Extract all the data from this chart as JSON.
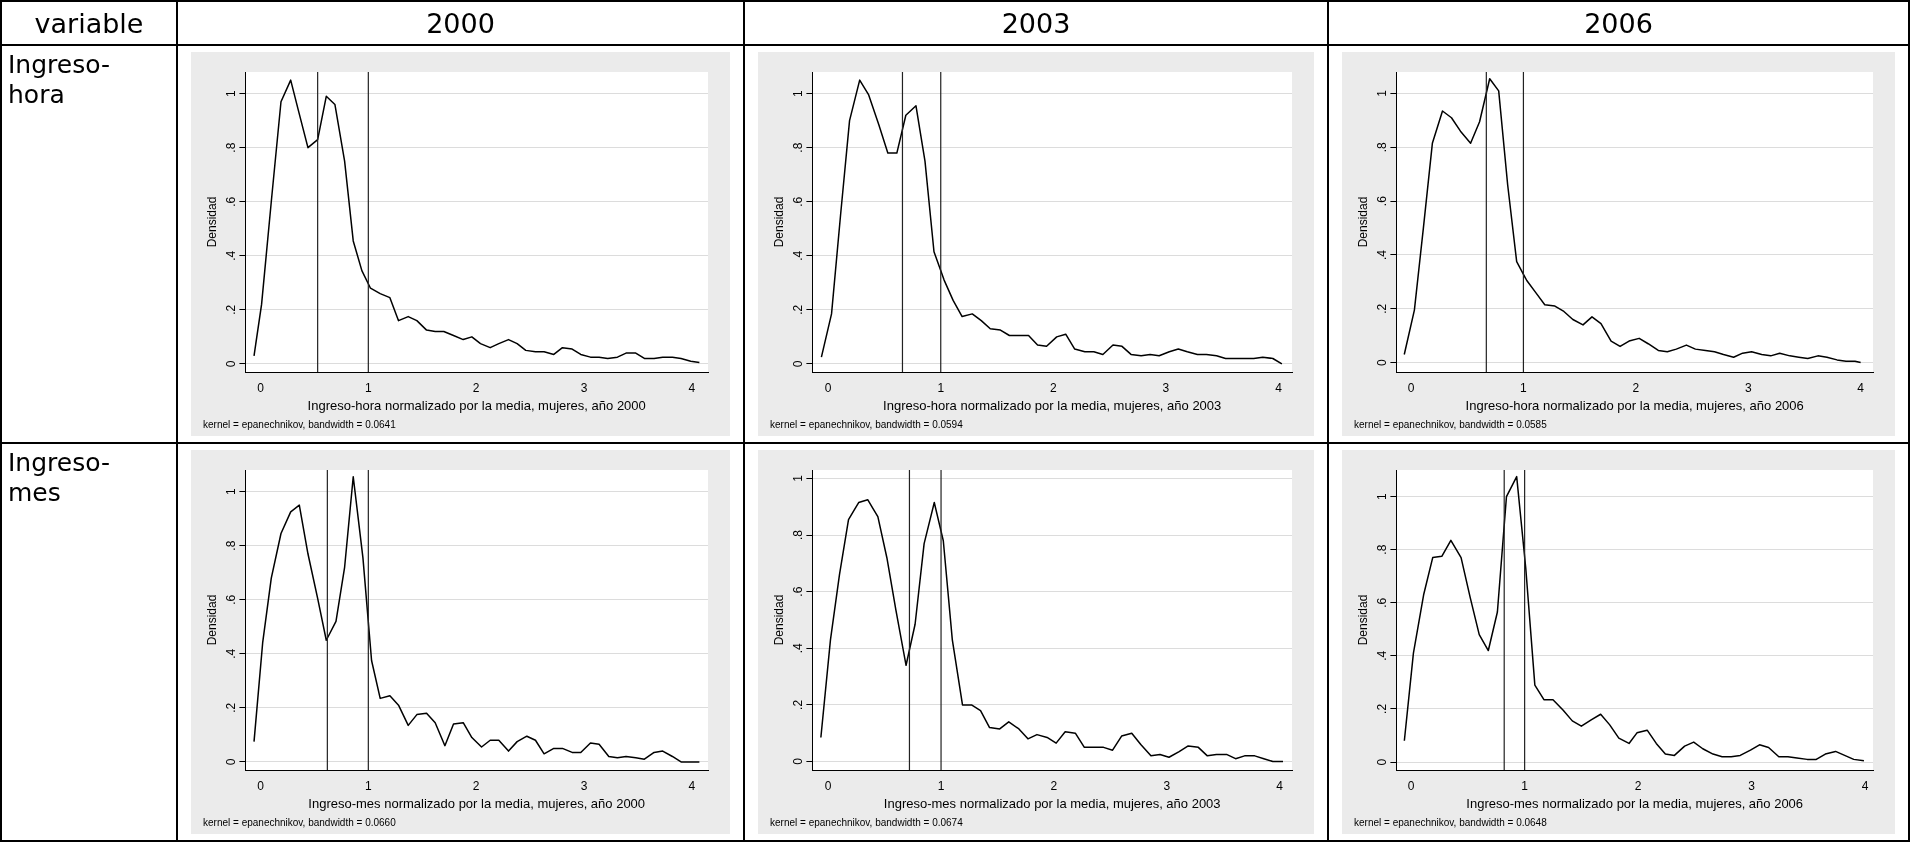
{
  "chart_data": [
    {
      "type": "other",
      "annotations": [
        "variable",
        "2000",
        "2003",
        "2006",
        "Ingreso-hora",
        "Ingreso-mes"
      ]
    },
    {
      "type": "line",
      "xlabel": "Ingreso-hora normalizado por la media, mujeres, año 2000",
      "ylabel": "Densidad",
      "annotations": [
        "kernel = epanechnikov, bandwidth = 0.0641"
      ],
      "xlim": [
        -0.14,
        4.15
      ],
      "ylim": [
        -0.03,
        1.08
      ],
      "xticks": [
        0,
        1,
        2,
        3,
        4
      ],
      "yticks": [
        {
          "value": 0,
          "label": "0"
        },
        {
          "value": 0.2,
          "label": ".2"
        },
        {
          "value": 0.4,
          "label": ".4"
        },
        {
          "value": 0.6,
          "label": ".6"
        },
        {
          "value": 0.8,
          "label": ".8"
        },
        {
          "value": 1,
          "label": "1"
        }
      ],
      "grid": "y",
      "legend": false,
      "marker": "none",
      "line_style": "solid",
      "ref_lines": [
        {
          "axis": "x",
          "value": 0.53
        },
        {
          "axis": "x",
          "value": 1
        }
      ],
      "series": [
        {
          "color": "#000000",
          "x": [
            -0.06,
            0.01,
            0.1,
            0.19,
            0.28,
            0.35,
            0.44,
            0.53,
            0.61,
            0.69,
            0.78,
            0.86,
            0.94,
            1.02,
            1.11,
            1.2,
            1.28,
            1.37,
            1.45,
            1.54,
            1.62,
            1.7,
            1.79,
            1.88,
            1.96,
            2.04,
            2.13,
            2.21,
            2.3,
            2.38,
            2.46,
            2.55,
            2.63,
            2.72,
            2.8,
            2.89,
            2.97,
            3.06,
            3.14,
            3.22,
            3.31,
            3.39,
            3.48,
            3.56,
            3.65,
            3.73,
            3.82,
            3.9,
            3.99,
            4.07
          ],
          "values": [
            0.03,
            0.22,
            0.6,
            0.97,
            1.05,
            0.94,
            0.8,
            0.83,
            0.99,
            0.96,
            0.75,
            0.455,
            0.345,
            0.28,
            0.26,
            0.245,
            0.16,
            0.175,
            0.16,
            0.125,
            0.12,
            0.12,
            0.105,
            0.09,
            0.1,
            0.075,
            0.06,
            0.075,
            0.09,
            0.075,
            0.05,
            0.045,
            0.045,
            0.035,
            0.06,
            0.055,
            0.035,
            0.025,
            0.025,
            0.02,
            0.025,
            0.04,
            0.04,
            0.02,
            0.02,
            0.025,
            0.025,
            0.02,
            0.01,
            0.005
          ]
        }
      ]
    },
    {
      "type": "line",
      "xlabel": "Ingreso-hora normalizado por la media, mujeres, año 2003",
      "ylabel": "Densidad",
      "annotations": [
        "kernel = epanechnikov, bandwidth = 0.0594"
      ],
      "xlim": [
        -0.14,
        4.12
      ],
      "ylim": [
        -0.03,
        1.08
      ],
      "xticks": [
        0,
        1,
        2,
        3,
        4
      ],
      "yticks": [
        {
          "value": 0,
          "label": "0"
        },
        {
          "value": 0.2,
          "label": ".2"
        },
        {
          "value": 0.4,
          "label": ".4"
        },
        {
          "value": 0.6,
          "label": ".6"
        },
        {
          "value": 0.8,
          "label": ".8"
        },
        {
          "value": 1,
          "label": "1"
        }
      ],
      "grid": "y",
      "legend": false,
      "marker": "none",
      "line_style": "solid",
      "ref_lines": [
        {
          "axis": "x",
          "value": 0.66
        },
        {
          "axis": "x",
          "value": 1
        }
      ],
      "series": [
        {
          "color": "#000000",
          "x": [
            -0.06,
            0.03,
            0.11,
            0.19,
            0.28,
            0.36,
            0.45,
            0.53,
            0.61,
            0.69,
            0.78,
            0.86,
            0.94,
            1.03,
            1.11,
            1.19,
            1.28,
            1.36,
            1.44,
            1.53,
            1.61,
            1.69,
            1.78,
            1.86,
            1.94,
            2.03,
            2.11,
            2.19,
            2.28,
            2.36,
            2.44,
            2.53,
            2.61,
            2.69,
            2.78,
            2.86,
            2.94,
            3.03,
            3.11,
            3.19,
            3.28,
            3.36,
            3.45,
            3.53,
            3.61,
            3.7,
            3.78,
            3.86,
            3.95,
            4.03
          ],
          "values": [
            0.025,
            0.185,
            0.55,
            0.9,
            1.05,
            0.995,
            0.885,
            0.78,
            0.78,
            0.92,
            0.955,
            0.75,
            0.415,
            0.31,
            0.235,
            0.175,
            0.185,
            0.16,
            0.13,
            0.125,
            0.105,
            0.105,
            0.105,
            0.07,
            0.065,
            0.1,
            0.11,
            0.055,
            0.045,
            0.045,
            0.035,
            0.07,
            0.065,
            0.035,
            0.03,
            0.035,
            0.03,
            0.045,
            0.055,
            0.045,
            0.035,
            0.035,
            0.03,
            0.02,
            0.02,
            0.02,
            0.02,
            0.025,
            0.02,
            0
          ]
        }
      ]
    },
    {
      "type": "line",
      "xlabel": "Ingreso-hora normalizado por la media, mujeres, año 2006",
      "ylabel": "Densidad",
      "annotations": [
        "kernel = epanechnikov, bandwidth = 0.0585"
      ],
      "xlim": [
        -0.13,
        4.11
      ],
      "ylim": [
        -0.035,
        1.08
      ],
      "xticks": [
        0,
        1,
        2,
        3,
        4
      ],
      "yticks": [
        {
          "value": 0,
          "label": "0"
        },
        {
          "value": 0.2,
          "label": ".2"
        },
        {
          "value": 0.4,
          "label": ".4"
        },
        {
          "value": 0.6,
          "label": ".6"
        },
        {
          "value": 0.8,
          "label": ".8"
        },
        {
          "value": 1,
          "label": "1"
        }
      ],
      "grid": "y",
      "legend": false,
      "marker": "none",
      "line_style": "solid",
      "ref_lines": [
        {
          "axis": "x",
          "value": 0.67
        },
        {
          "axis": "x",
          "value": 1
        }
      ],
      "series": [
        {
          "color": "#000000",
          "x": [
            -0.06,
            0.03,
            0.11,
            0.19,
            0.28,
            0.36,
            0.44,
            0.53,
            0.61,
            0.7,
            0.78,
            0.86,
            0.94,
            1.03,
            1.11,
            1.19,
            1.28,
            1.36,
            1.44,
            1.53,
            1.61,
            1.69,
            1.78,
            1.86,
            1.94,
            2.03,
            2.11,
            2.2,
            2.28,
            2.36,
            2.45,
            2.53,
            2.62,
            2.7,
            2.78,
            2.87,
            2.95,
            3.03,
            3.12,
            3.2,
            3.28,
            3.37,
            3.45,
            3.53,
            3.62,
            3.7,
            3.79,
            3.87,
            3.95,
            4.0
          ],
          "values": [
            0.03,
            0.195,
            0.5,
            0.815,
            0.935,
            0.91,
            0.86,
            0.815,
            0.895,
            1.055,
            1.01,
            0.66,
            0.375,
            0.305,
            0.26,
            0.215,
            0.21,
            0.19,
            0.16,
            0.14,
            0.17,
            0.145,
            0.08,
            0.06,
            0.08,
            0.09,
            0.07,
            0.045,
            0.04,
            0.05,
            0.065,
            0.05,
            0.045,
            0.04,
            0.03,
            0.02,
            0.035,
            0.04,
            0.03,
            0.025,
            0.035,
            0.025,
            0.02,
            0.015,
            0.025,
            0.02,
            0.01,
            0.005,
            0.005,
            0
          ]
        }
      ]
    },
    {
      "type": "line",
      "xlabel": "Ingreso-mes normalizado por la media, mujeres, año 2000",
      "ylabel": "Densidad",
      "annotations": [
        "kernel = epanechnikov, bandwidth = 0.0660"
      ],
      "xlim": [
        -0.14,
        4.15
      ],
      "ylim": [
        -0.03,
        1.08
      ],
      "xticks": [
        0,
        1,
        2,
        3,
        4
      ],
      "yticks": [
        {
          "value": 0,
          "label": "0"
        },
        {
          "value": 0.2,
          "label": ".2"
        },
        {
          "value": 0.4,
          "label": ".4"
        },
        {
          "value": 0.6,
          "label": ".6"
        },
        {
          "value": 0.8,
          "label": ".8"
        },
        {
          "value": 1,
          "label": "1"
        }
      ],
      "grid": "y",
      "legend": false,
      "marker": "none",
      "line_style": "solid",
      "ref_lines": [
        {
          "axis": "x",
          "value": 0.62
        },
        {
          "axis": "x",
          "value": 1
        }
      ],
      "series": [
        {
          "color": "#000000",
          "x": [
            -0.06,
            0.02,
            0.1,
            0.19,
            0.28,
            0.36,
            0.44,
            0.53,
            0.61,
            0.7,
            0.78,
            0.86,
            0.95,
            1.03,
            1.11,
            1.2,
            1.28,
            1.37,
            1.45,
            1.54,
            1.62,
            1.71,
            1.79,
            1.88,
            1.96,
            2.05,
            2.13,
            2.21,
            2.3,
            2.38,
            2.47,
            2.55,
            2.63,
            2.72,
            2.8,
            2.89,
            2.97,
            3.06,
            3.14,
            3.23,
            3.31,
            3.39,
            3.48,
            3.56,
            3.65,
            3.73,
            3.82,
            3.9,
            3.99,
            4.07
          ],
          "values": [
            0.075,
            0.44,
            0.68,
            0.845,
            0.925,
            0.95,
            0.77,
            0.605,
            0.45,
            0.52,
            0.72,
            1.055,
            0.755,
            0.375,
            0.235,
            0.245,
            0.21,
            0.135,
            0.175,
            0.18,
            0.145,
            0.06,
            0.14,
            0.145,
            0.09,
            0.055,
            0.08,
            0.08,
            0.04,
            0.075,
            0.095,
            0.08,
            0.03,
            0.05,
            0.05,
            0.035,
            0.035,
            0.07,
            0.065,
            0.02,
            0.015,
            0.02,
            0.015,
            0.01,
            0.035,
            0.04,
            0.02,
            0,
            0,
            0
          ]
        }
      ]
    },
    {
      "type": "line",
      "xlabel": "Ingreso-mes normalizado por la media, mujeres, año 2003",
      "ylabel": "Densidad",
      "annotations": [
        "kernel = epanechnikov, bandwidth = 0.0674"
      ],
      "xlim": [
        -0.14,
        4.11
      ],
      "ylim": [
        -0.03,
        1.03
      ],
      "xticks": [
        0,
        1,
        2,
        3,
        4
      ],
      "yticks": [
        {
          "value": 0,
          "label": "0"
        },
        {
          "value": 0.2,
          "label": ".2"
        },
        {
          "value": 0.4,
          "label": ".4"
        },
        {
          "value": 0.6,
          "label": ".6"
        },
        {
          "value": 0.8,
          "label": ".8"
        },
        {
          "value": 1,
          "label": "1"
        }
      ],
      "grid": "y",
      "legend": false,
      "marker": "none",
      "line_style": "solid",
      "ref_lines": [
        {
          "axis": "x",
          "value": 0.72
        },
        {
          "axis": "x",
          "value": 1
        }
      ],
      "series": [
        {
          "color": "#000000",
          "x": [
            -0.065,
            0.02,
            0.1,
            0.18,
            0.27,
            0.35,
            0.44,
            0.52,
            0.6,
            0.69,
            0.77,
            0.85,
            0.94,
            1.02,
            1.1,
            1.19,
            1.27,
            1.35,
            1.43,
            1.52,
            1.6,
            1.69,
            1.77,
            1.85,
            1.94,
            2.02,
            2.1,
            2.19,
            2.27,
            2.35,
            2.44,
            2.52,
            2.6,
            2.69,
            2.77,
            2.86,
            2.94,
            3.02,
            3.11,
            3.19,
            3.28,
            3.36,
            3.44,
            3.53,
            3.61,
            3.69,
            3.78,
            3.86,
            3.94,
            4.03
          ],
          "values": [
            0.085,
            0.43,
            0.66,
            0.855,
            0.915,
            0.925,
            0.865,
            0.72,
            0.535,
            0.34,
            0.485,
            0.77,
            0.915,
            0.78,
            0.43,
            0.2,
            0.2,
            0.18,
            0.12,
            0.115,
            0.14,
            0.115,
            0.08,
            0.095,
            0.085,
            0.065,
            0.105,
            0.1,
            0.05,
            0.05,
            0.05,
            0.04,
            0.09,
            0.1,
            0.06,
            0.02,
            0.025,
            0.015,
            0.035,
            0.055,
            0.05,
            0.02,
            0.025,
            0.025,
            0.01,
            0.02,
            0.02,
            0.01,
            0,
            0
          ]
        }
      ]
    },
    {
      "type": "line",
      "xlabel": "Ingreso-mes normalizado por la media, mujeres, año 2006",
      "ylabel": "Densidad",
      "annotations": [
        "kernel = epanechnikov, bandwidth = 0.0648"
      ],
      "xlim": [
        -0.13,
        4.07
      ],
      "ylim": [
        -0.03,
        1.1
      ],
      "xticks": [
        0,
        1,
        2,
        3,
        4
      ],
      "yticks": [
        {
          "value": 0,
          "label": "0"
        },
        {
          "value": 0.2,
          "label": ".2"
        },
        {
          "value": 0.4,
          "label": ".4"
        },
        {
          "value": 0.6,
          "label": ".6"
        },
        {
          "value": 0.8,
          "label": ".8"
        },
        {
          "value": 1,
          "label": "1"
        }
      ],
      "grid": "y",
      "legend": false,
      "marker": "none",
      "line_style": "solid",
      "ref_lines": [
        {
          "axis": "x",
          "value": 0.82
        },
        {
          "axis": "x",
          "value": 1
        }
      ],
      "series": [
        {
          "color": "#000000",
          "x": [
            -0.06,
            0.02,
            0.11,
            0.19,
            0.27,
            0.35,
            0.44,
            0.52,
            0.6,
            0.68,
            0.76,
            0.84,
            0.93,
            1.01,
            1.09,
            1.17,
            1.25,
            1.34,
            1.42,
            1.5,
            1.59,
            1.67,
            1.75,
            1.83,
            1.92,
            1.99,
            2.08,
            2.16,
            2.24,
            2.32,
            2.41,
            2.49,
            2.57,
            2.66,
            2.74,
            2.82,
            2.9,
            2.99,
            3.07,
            3.15,
            3.24,
            3.32,
            3.4,
            3.49,
            3.57,
            3.65,
            3.74,
            3.82,
            3.9,
            3.99
          ],
          "values": [
            0.08,
            0.41,
            0.63,
            0.77,
            0.775,
            0.835,
            0.77,
            0.62,
            0.48,
            0.42,
            0.565,
            1.0,
            1.075,
            0.73,
            0.29,
            0.235,
            0.235,
            0.195,
            0.155,
            0.135,
            0.16,
            0.18,
            0.14,
            0.09,
            0.07,
            0.11,
            0.12,
            0.07,
            0.03,
            0.025,
            0.06,
            0.075,
            0.05,
            0.03,
            0.02,
            0.02,
            0.025,
            0.045,
            0.065,
            0.055,
            0.02,
            0.02,
            0.015,
            0.01,
            0.01,
            0.03,
            0.04,
            0.025,
            0.01,
            0.005
          ]
        }
      ]
    }
  ]
}
